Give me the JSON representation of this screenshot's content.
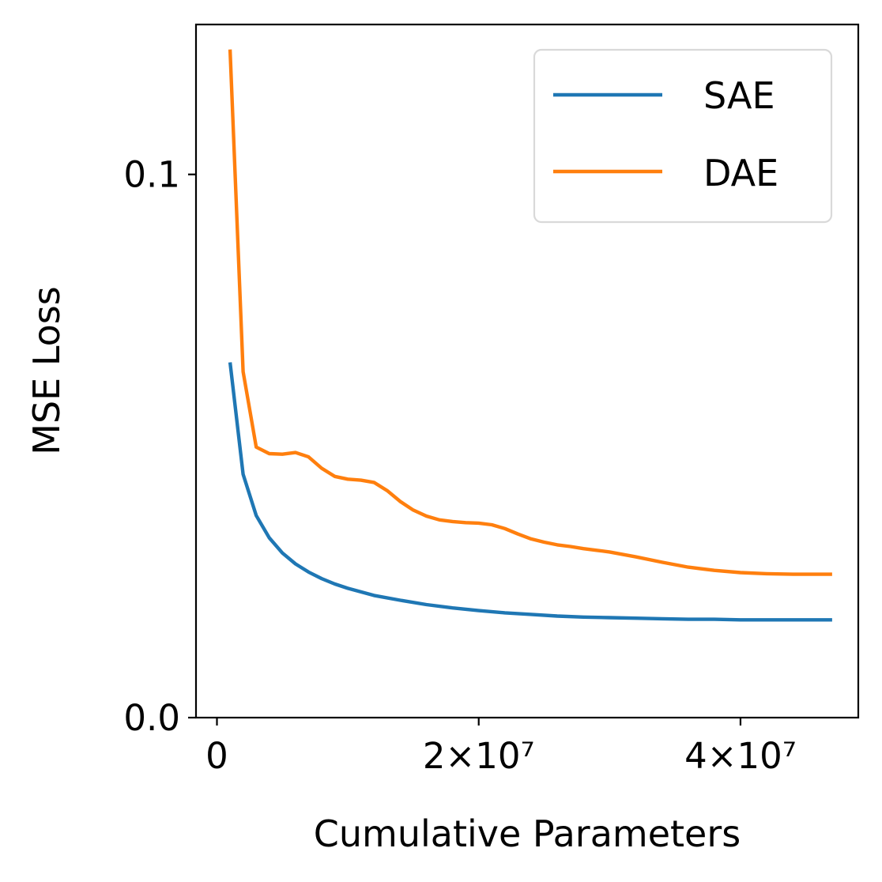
{
  "chart_data": {
    "type": "line",
    "title": "",
    "xlabel": "Cumulative Parameters",
    "ylabel": "MSE Loss",
    "xlim": [
      -1600000,
      49000000
    ],
    "ylim": [
      0.0,
      0.1276
    ],
    "x_ticks": [
      {
        "value": 0,
        "label": "0"
      },
      {
        "value": 20000000,
        "label": "2×10⁷"
      },
      {
        "value": 40000000,
        "label": "4×10⁷"
      }
    ],
    "y_ticks": [
      {
        "value": 0.0,
        "label": "0.0"
      },
      {
        "value": 0.1,
        "label": "0.1"
      }
    ],
    "grid": false,
    "legend": "upper right",
    "series": [
      {
        "name": "SAE",
        "color": "#1f77b4",
        "x": [
          1000000,
          2000000,
          3000000,
          4000000,
          5000000,
          6000000,
          7000000,
          8000000,
          9000000,
          10000000,
          12000000,
          14000000,
          16000000,
          18000000,
          20000000,
          22000000,
          24000000,
          26000000,
          28000000,
          30000000,
          32000000,
          34000000,
          36000000,
          38000000,
          40000000,
          42000000,
          44000000,
          46000000,
          47000000
        ],
        "y": [
          0.0654,
          0.0448,
          0.0372,
          0.0331,
          0.0303,
          0.0283,
          0.0268,
          0.0256,
          0.0246,
          0.0238,
          0.0225,
          0.0216,
          0.0208,
          0.0202,
          0.0197,
          0.0193,
          0.019,
          0.0187,
          0.0185,
          0.0184,
          0.0183,
          0.0182,
          0.0181,
          0.0181,
          0.018,
          0.018,
          0.018,
          0.018,
          0.018
        ]
      },
      {
        "name": "DAE",
        "color": "#ff7f0e",
        "x": [
          1000000,
          2000000,
          3000000,
          4000000,
          5000000,
          6000000,
          7000000,
          8000000,
          9000000,
          10000000,
          11000000,
          12000000,
          13000000,
          14000000,
          15000000,
          16000000,
          17000000,
          18000000,
          19000000,
          20000000,
          21000000,
          22000000,
          23000000,
          24000000,
          25000000,
          26000000,
          27000000,
          28000000,
          29000000,
          30000000,
          32000000,
          34000000,
          36000000,
          38000000,
          40000000,
          42000000,
          44000000,
          46000000,
          47000000
        ],
        "y": [
          0.123,
          0.0637,
          0.0498,
          0.0486,
          0.0485,
          0.0488,
          0.048,
          0.0459,
          0.0444,
          0.0439,
          0.0437,
          0.0433,
          0.0418,
          0.0398,
          0.0382,
          0.0371,
          0.0364,
          0.0361,
          0.0359,
          0.0358,
          0.0355,
          0.0348,
          0.0338,
          0.0329,
          0.0323,
          0.0318,
          0.0315,
          0.0311,
          0.0308,
          0.0305,
          0.0296,
          0.0286,
          0.0277,
          0.0271,
          0.0267,
          0.0265,
          0.0264,
          0.0264,
          0.0264
        ]
      }
    ]
  }
}
